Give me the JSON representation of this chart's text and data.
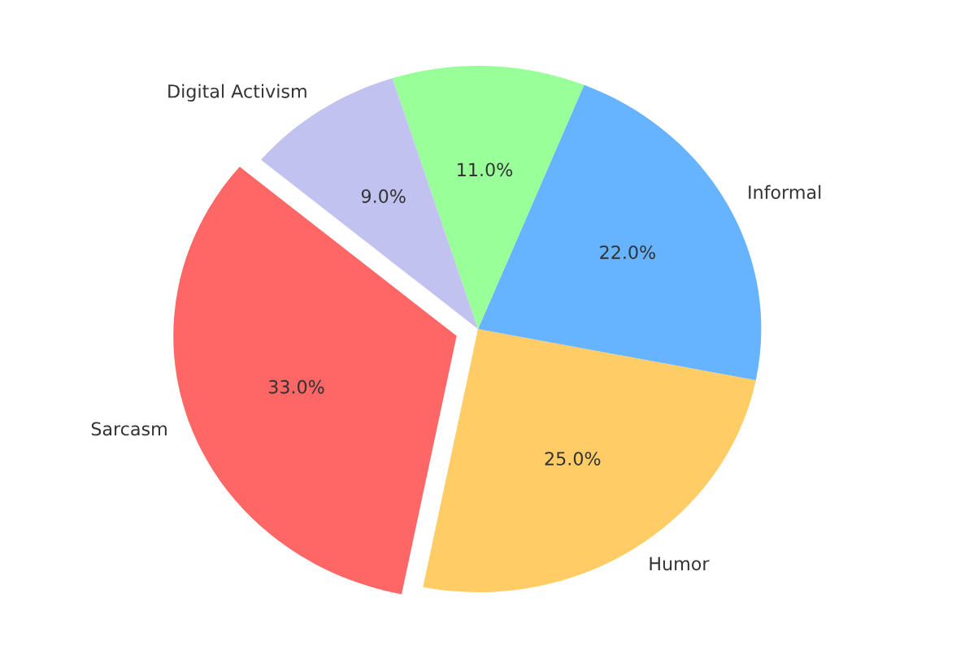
{
  "chart_data": {
    "type": "pie",
    "categories": [
      "Sarcasm",
      "Humor",
      "Informal",
      null,
      "Digital Activism"
    ],
    "values": [
      33,
      25,
      22,
      11,
      9
    ],
    "colors": [
      "#ff6666",
      "#ffcc66",
      "#66b3ff",
      "#99ff99",
      "#c2c2f0"
    ],
    "value_labels": [
      "33.0%",
      "25.0%",
      "22.0%",
      "11.0%",
      "9.0%"
    ]
  }
}
